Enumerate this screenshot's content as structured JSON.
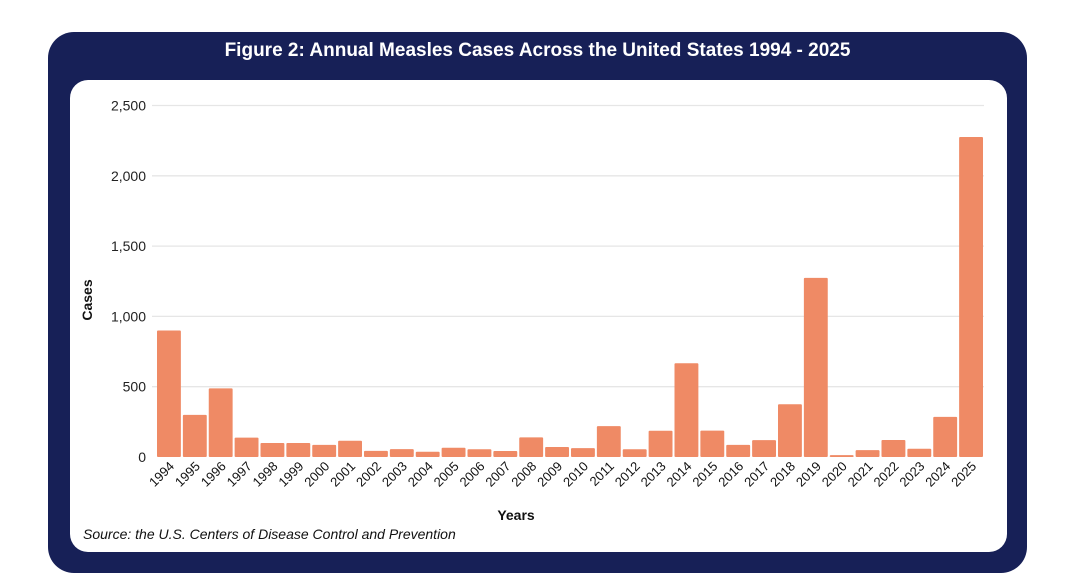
{
  "colors": {
    "frame": "#172057",
    "bar": "#EF8A65",
    "grid": "#E6E6E6",
    "text": "#222222"
  },
  "chart_data": {
    "type": "bar",
    "title": "Figure 2: Annual Measles Cases Across the United States 1994 - 2025",
    "xlabel": "Years",
    "ylabel": "Cases",
    "ylim": [
      0,
      2500
    ],
    "yticks": [
      0,
      500,
      1000,
      1500,
      2000,
      2500
    ],
    "ytick_labels": [
      "0",
      "500",
      "1,000",
      "1,500",
      "2,000",
      "2,500"
    ],
    "grid": true,
    "legend": "none",
    "categories": [
      "1994",
      "1995",
      "1996",
      "1997",
      "1998",
      "1999",
      "2000",
      "2001",
      "2002",
      "2003",
      "2004",
      "2005",
      "2006",
      "2007",
      "2008",
      "2009",
      "2010",
      "2011",
      "2012",
      "2013",
      "2014",
      "2015",
      "2016",
      "2017",
      "2018",
      "2019",
      "2020",
      "2021",
      "2022",
      "2023",
      "2024",
      "2025"
    ],
    "values": [
      900,
      300,
      488,
      138,
      100,
      100,
      86,
      116,
      44,
      56,
      37,
      66,
      55,
      43,
      140,
      71,
      63,
      220,
      55,
      187,
      667,
      188,
      86,
      120,
      375,
      1274,
      13,
      49,
      121,
      59,
      285,
      2276
    ],
    "source": "Source: the U.S. Centers of Disease Control and Prevention"
  }
}
